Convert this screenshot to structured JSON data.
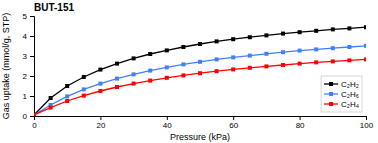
{
  "chart_data": {
    "type": "line",
    "title": "BUT-151",
    "xlabel": "Pressure (kPa)",
    "ylabel": "Gas uptake (mmol/g, STP)",
    "x": [
      0,
      5,
      10,
      15,
      20,
      25,
      30,
      35,
      40,
      45,
      50,
      55,
      60,
      65,
      70,
      75,
      80,
      85,
      90,
      95,
      100
    ],
    "series": [
      {
        "name": "C₂H₂",
        "color": "#000000",
        "marker": "square",
        "values": [
          0.05,
          0.9,
          1.5,
          1.95,
          2.32,
          2.62,
          2.88,
          3.1,
          3.28,
          3.45,
          3.6,
          3.73,
          3.84,
          3.94,
          4.03,
          4.12,
          4.19,
          4.26,
          4.33,
          4.38,
          4.44
        ]
      },
      {
        "name": "C₂H₆",
        "color": "#4080ff",
        "marker": "square",
        "values": [
          0.05,
          0.55,
          0.98,
          1.33,
          1.62,
          1.87,
          2.08,
          2.27,
          2.43,
          2.58,
          2.71,
          2.83,
          2.93,
          3.02,
          3.11,
          3.19,
          3.27,
          3.33,
          3.39,
          3.45,
          3.51
        ]
      },
      {
        "name": "C₂H₄",
        "color": "#ff0000",
        "marker": "square",
        "values": [
          0.05,
          0.42,
          0.75,
          1.02,
          1.25,
          1.45,
          1.62,
          1.77,
          1.91,
          2.03,
          2.14,
          2.24,
          2.33,
          2.41,
          2.48,
          2.55,
          2.62,
          2.68,
          2.73,
          2.78,
          2.83
        ]
      }
    ],
    "xlim": [
      0,
      100
    ],
    "ylim": [
      0,
      5
    ],
    "xticks": [
      0,
      20,
      40,
      60,
      80,
      100
    ],
    "yticks": [
      0,
      1,
      2,
      3,
      4,
      5
    ],
    "legend": "lower right"
  }
}
